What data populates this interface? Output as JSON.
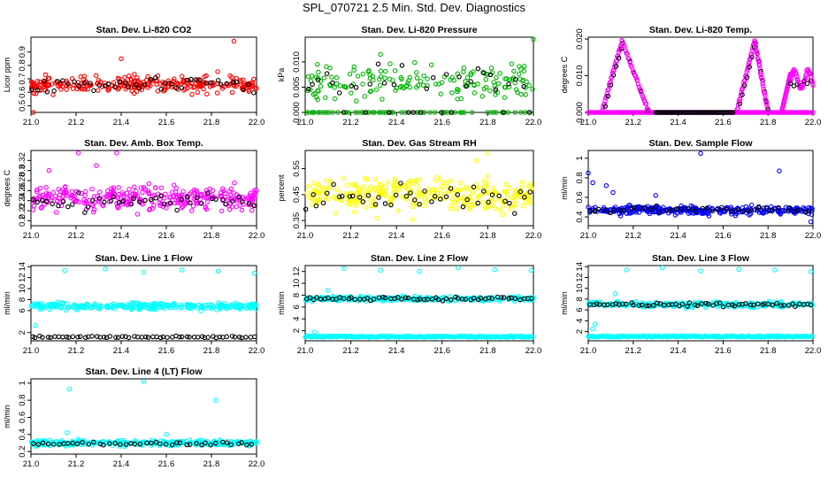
{
  "page": {
    "title": "SPL_070721  2.5 Min. Std. Dev. Diagnostics"
  },
  "chart_data": [
    {
      "id": "li820-co2",
      "type": "scatter",
      "title": "Stan. Dev. Li-820 CO2",
      "ylabel": "Licor ppm",
      "xlim": [
        21.0,
        22.0
      ],
      "ylim": [
        0.45,
        1.01
      ],
      "xticks": [
        21.0,
        21.2,
        21.4,
        21.6,
        21.8,
        22.0
      ],
      "yticks": [
        0.5,
        0.6,
        0.7,
        0.8,
        0.9
      ],
      "series_color": "#ff0000",
      "black_series_color": "#000000",
      "colored": {
        "n": 260,
        "center": 0.66,
        "spread": 0.06
      },
      "black": {
        "n": 44,
        "center": 0.66,
        "spread": 0.05
      },
      "outliers": [
        [
          21.9,
          0.98
        ],
        [
          21.01,
          0.45
        ],
        [
          21.4,
          0.85
        ]
      ]
    },
    {
      "id": "li820-pressure",
      "type": "scatter",
      "title": "Stan. Dev. Li-820 Pressure",
      "ylabel": "kPa",
      "xlim": [
        21.0,
        22.0
      ],
      "ylim": [
        0.0,
        0.0149
      ],
      "xticks": [
        21.0,
        21.2,
        21.4,
        21.6,
        21.8,
        22.0
      ],
      "yticks": [
        0.0,
        0.005,
        0.01
      ],
      "ytick_labels": [
        "0.000",
        "0.005",
        "0.010"
      ],
      "series_color": "#00b400",
      "black_series_color": "#000000",
      "colored": {
        "n": 230,
        "center": 0.006,
        "spread": 0.0035,
        "zero_fraction": 0.35
      },
      "black": {
        "n": 36,
        "center": 0.006,
        "spread": 0.003,
        "zero_fraction": 0.3
      },
      "outliers": [
        [
          22.0,
          0.0145
        ],
        [
          21.33,
          0.0115
        ]
      ]
    },
    {
      "id": "li820-temp",
      "type": "scatter",
      "title": "Stan. Dev. Li-820 Temp.",
      "ylabel": "degrees C",
      "xlim": [
        21.0,
        22.0
      ],
      "ylim": [
        0.0,
        0.0205
      ],
      "xticks": [
        21.0,
        21.2,
        21.4,
        21.6,
        21.8,
        22.0
      ],
      "yticks": [
        0.0,
        0.01,
        0.02
      ],
      "ytick_labels": [
        "0.000",
        "0.010",
        "0.020"
      ],
      "series_color": "#ff00ff",
      "black_series_color": "#000000",
      "ramps": [
        [
          21.0,
          21.06,
          0.0
        ],
        [
          21.06,
          21.15,
          0.0
        ],
        [
          21.15,
          21.2,
          0.02
        ],
        [
          21.2,
          21.27,
          0.0
        ],
        [
          21.27,
          21.65,
          0.0
        ],
        [
          21.65,
          21.71,
          0.0
        ],
        [
          21.71,
          21.75,
          0.02
        ],
        [
          21.75,
          21.8,
          0.0
        ],
        [
          21.8,
          21.86,
          0.0
        ],
        [
          21.86,
          21.9,
          0.011
        ],
        [
          21.9,
          21.96,
          0.009
        ],
        [
          21.96,
          22.0,
          0.011
        ]
      ]
    },
    {
      "id": "amb-box-temp",
      "type": "scatter",
      "title": "Stan. Dev. Amb. Box Temp.",
      "ylabel": "degrees C",
      "xlim": [
        21.0,
        22.0
      ],
      "ylim": [
        0.19,
        0.34
      ],
      "xticks": [
        21.0,
        21.2,
        21.4,
        21.6,
        21.8,
        22.0
      ],
      "yticks": [
        0.2,
        0.22,
        0.24,
        0.26,
        0.28,
        0.3,
        0.32
      ],
      "series_color": "#ff00ff",
      "black_series_color": "#000000",
      "colored": {
        "n": 300,
        "center": 0.245,
        "spread": 0.022
      },
      "black": {
        "n": 44,
        "center": 0.238,
        "spread": 0.015
      },
      "outliers": [
        [
          21.21,
          0.335
        ],
        [
          21.38,
          0.335
        ],
        [
          21.08,
          0.3
        ],
        [
          21.29,
          0.31
        ]
      ]
    },
    {
      "id": "gas-stream-rh",
      "type": "scatter",
      "title": "Stan. Dev. Gas Stream RH",
      "ylabel": "percent",
      "xlim": [
        21.0,
        22.0
      ],
      "ylim": [
        0.33,
        0.62
      ],
      "xticks": [
        21.0,
        21.2,
        21.4,
        21.6,
        21.8,
        22.0
      ],
      "yticks": [
        0.35,
        0.45,
        0.55
      ],
      "series_color": "#ffff00",
      "black_series_color": "#000000",
      "colored": {
        "n": 300,
        "center": 0.45,
        "spread": 0.06
      },
      "black": {
        "n": 44,
        "center": 0.44,
        "spread": 0.05
      },
      "outliers": [
        [
          21.8,
          0.61
        ],
        [
          21.75,
          0.58
        ]
      ]
    },
    {
      "id": "sample-flow",
      "type": "scatter",
      "title": "Stan. Dev. Sample Flow",
      "ylabel": "ml/min",
      "xlim": [
        21.0,
        22.0
      ],
      "ylim": [
        0.31,
        1.08
      ],
      "xticks": [
        21.0,
        21.2,
        21.4,
        21.6,
        21.8,
        22.0
      ],
      "yticks": [
        0.4,
        0.6,
        0.8,
        1.0
      ],
      "series_color": "#0000ff",
      "black_series_color": "#000000",
      "colored": {
        "n": 300,
        "center": 0.47,
        "spread": 0.04
      },
      "black": {
        "n": 44,
        "center": 0.47,
        "spread": 0.03
      },
      "outliers": [
        [
          21.5,
          1.05
        ],
        [
          21.85,
          0.87
        ],
        [
          21.0,
          0.85
        ],
        [
          21.02,
          0.75
        ],
        [
          21.08,
          0.72
        ],
        [
          21.3,
          0.62
        ],
        [
          21.99,
          0.35
        ],
        [
          21.11,
          0.65
        ]
      ]
    },
    {
      "id": "line1-flow",
      "type": "scatter",
      "title": "Stan. Dev. Line 1 Flow",
      "ylabel": "ml/min",
      "xlim": [
        21.0,
        22.0
      ],
      "ylim": [
        0.5,
        14.2
      ],
      "xticks": [
        21.0,
        21.2,
        21.4,
        21.6,
        21.8,
        22.0
      ],
      "yticks": [
        2,
        6,
        8,
        10,
        12,
        14
      ],
      "series_color": "#00ffff",
      "black_series_color": "#000000",
      "colored": {
        "n": 280,
        "center": 6.8,
        "spread": 0.6
      },
      "black": {
        "n": 60,
        "center": 1.2,
        "spread": 0.15
      },
      "outliers": [
        [
          21.15,
          13.3
        ],
        [
          21.33,
          13.6
        ],
        [
          21.5,
          13.0
        ],
        [
          21.67,
          13.4
        ],
        [
          21.83,
          13.2
        ],
        [
          21.99,
          12.8
        ],
        [
          21.02,
          3.3
        ]
      ]
    },
    {
      "id": "line2-flow",
      "type": "scatter",
      "title": "Stan. Dev. Line 2 Flow",
      "ylabel": "ml/min",
      "xlim": [
        21.0,
        22.0
      ],
      "ylim": [
        0.3,
        13.0
      ],
      "xticks": [
        21.0,
        21.2,
        21.4,
        21.6,
        21.8,
        22.0
      ],
      "yticks": [
        2,
        4,
        6,
        8,
        10,
        12
      ],
      "series_color": "#00ffff",
      "black_series_color": "#000000",
      "colored": {
        "n": 280,
        "center": 7.4,
        "spread": 0.35,
        "low_band": 1.0
      },
      "black": {
        "n": 60,
        "center": 7.4,
        "spread": 0.3
      },
      "outliers": [
        [
          21.17,
          12.5
        ],
        [
          21.33,
          12.2
        ],
        [
          21.5,
          12.0
        ],
        [
          21.67,
          12.6
        ],
        [
          21.83,
          12.3
        ],
        [
          21.99,
          12.2
        ],
        [
          21.1,
          8.8
        ],
        [
          21.04,
          1.8
        ]
      ]
    },
    {
      "id": "line3-flow",
      "type": "scatter",
      "title": "Stan. Dev. Line 3 Flow",
      "ylabel": "ml/min",
      "xlim": [
        21.0,
        22.0
      ],
      "ylim": [
        0.3,
        14.2
      ],
      "xticks": [
        21.0,
        21.2,
        21.4,
        21.6,
        21.8,
        22.0
      ],
      "yticks": [
        2,
        4,
        6,
        8,
        10,
        12,
        14
      ],
      "series_color": "#00ffff",
      "black_series_color": "#000000",
      "colored": {
        "n": 280,
        "center": 7.0,
        "spread": 0.45,
        "low_band": 1.1
      },
      "black": {
        "n": 60,
        "center": 7.0,
        "spread": 0.3
      },
      "outliers": [
        [
          21.17,
          13.4
        ],
        [
          21.33,
          13.8
        ],
        [
          21.5,
          13.2
        ],
        [
          21.67,
          13.5
        ],
        [
          21.83,
          13.4
        ],
        [
          21.99,
          13.1
        ],
        [
          21.03,
          3.4
        ],
        [
          21.02,
          2.5
        ],
        [
          21.12,
          9.0
        ]
      ]
    },
    {
      "id": "line4-lt-flow",
      "type": "scatter",
      "title": "Stan. Dev. Line 4 (LT) Flow",
      "ylabel": "ml/min",
      "xlim": [
        21.0,
        22.0
      ],
      "ylim": [
        0.17,
        1.05
      ],
      "xticks": [
        21.0,
        21.2,
        21.4,
        21.6,
        21.8,
        22.0
      ],
      "yticks": [
        0.2,
        0.4,
        0.6,
        0.8,
        1.0
      ],
      "series_color": "#00ffff",
      "black_series_color": "#000000",
      "colored": {
        "n": 300,
        "center": 0.3,
        "spread": 0.03
      },
      "black": {
        "n": 44,
        "center": 0.29,
        "spread": 0.02
      },
      "outliers": [
        [
          21.5,
          1.02
        ],
        [
          21.17,
          0.93
        ],
        [
          21.82,
          0.8
        ],
        [
          21.16,
          0.42
        ],
        [
          21.6,
          0.4
        ]
      ]
    }
  ]
}
